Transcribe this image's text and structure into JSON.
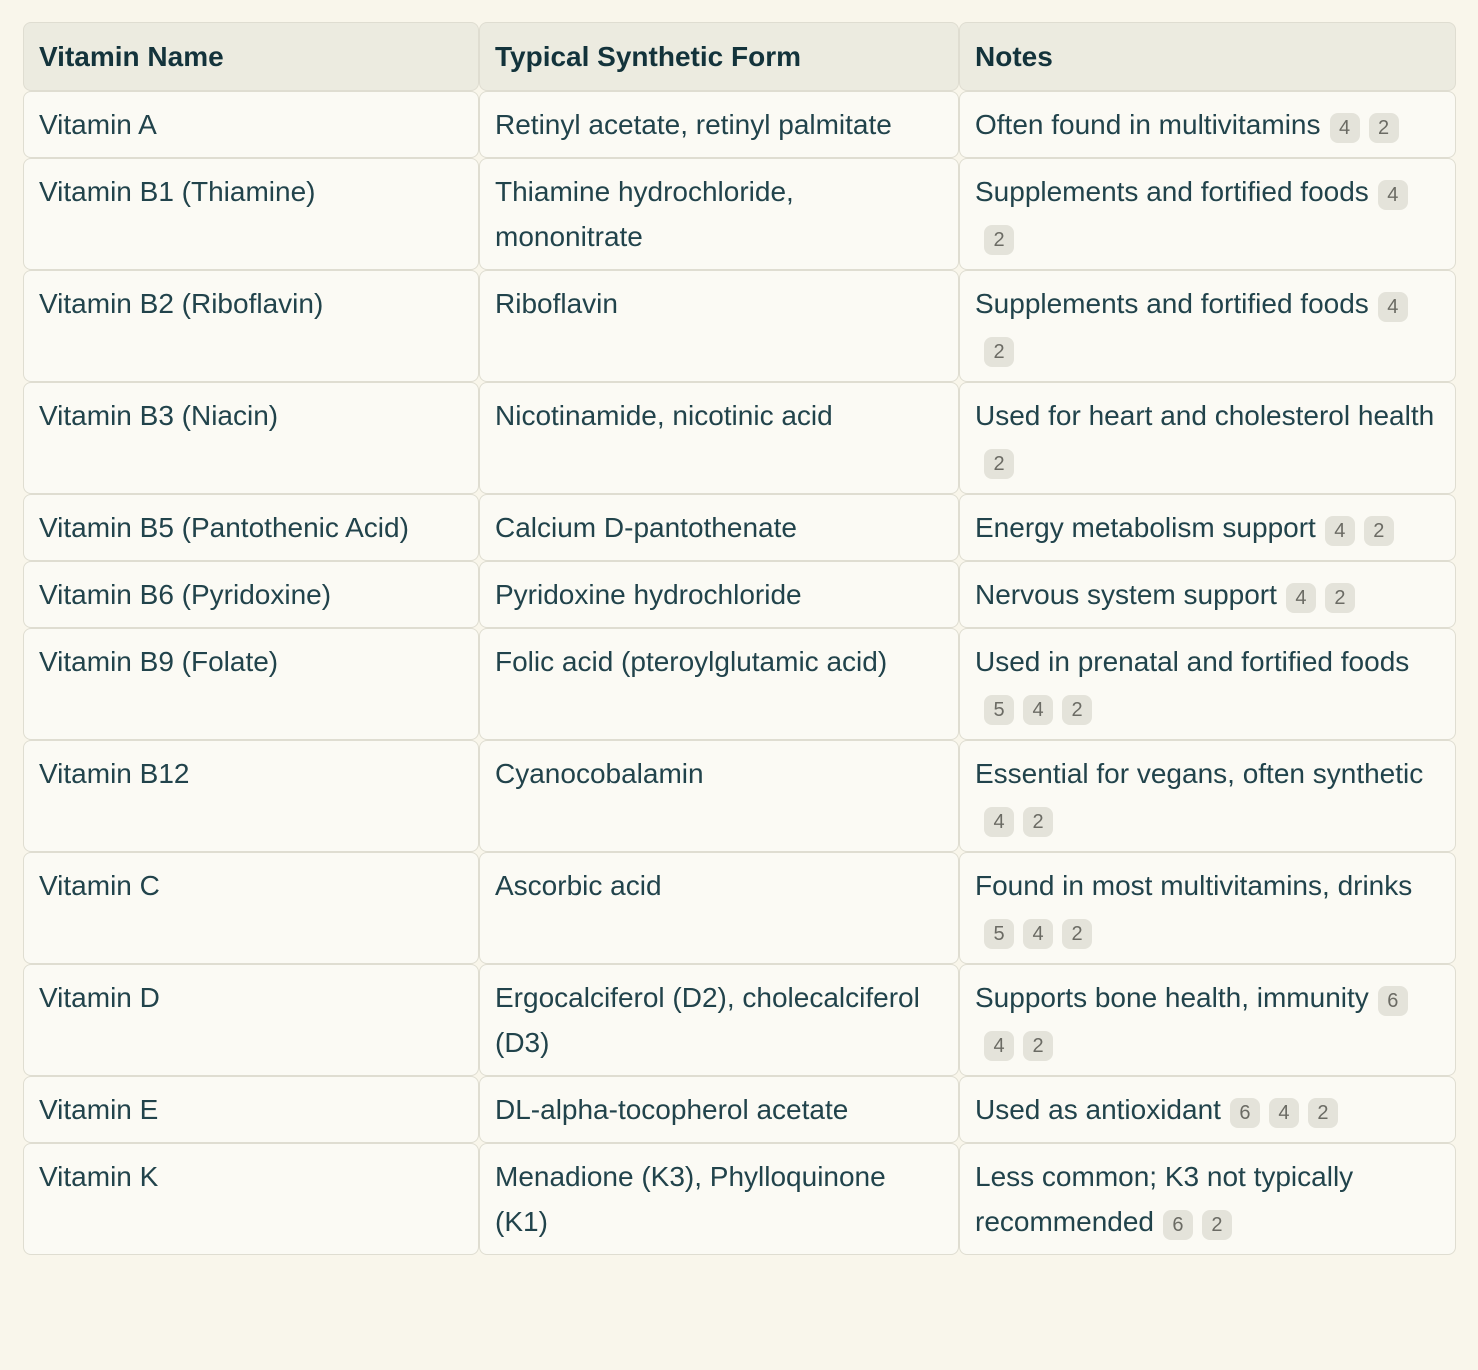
{
  "table": {
    "columns": [
      {
        "label": "Vitamin Name"
      },
      {
        "label": "Typical Synthetic Form"
      },
      {
        "label": "Notes"
      }
    ],
    "rows": [
      {
        "name": "Vitamin A",
        "form": "Retinyl acetate, retinyl palmitate",
        "note": "Often found in multivitamins",
        "citations": [
          "4",
          "2"
        ]
      },
      {
        "name": "Vitamin B1 (Thiamine)",
        "form": "Thiamine hydrochloride, mononitrate",
        "note": "Supplements and fortified foods",
        "citations": [
          "4",
          "2"
        ]
      },
      {
        "name": "Vitamin B2 (Riboflavin)",
        "form": "Riboflavin",
        "note": "Supplements and fortified foods",
        "citations": [
          "4",
          "2"
        ]
      },
      {
        "name": "Vitamin B3 (Niacin)",
        "form": "Nicotinamide, nicotinic acid",
        "note": "Used for heart and cholesterol health",
        "citations": [
          "2"
        ]
      },
      {
        "name": "Vitamin B5 (Pantothenic Acid)",
        "form": "Calcium D-pantothenate",
        "note": "Energy metabolism support",
        "citations": [
          "4",
          "2"
        ]
      },
      {
        "name": "Vitamin B6 (Pyridoxine)",
        "form": "Pyridoxine hydrochloride",
        "note": "Nervous system support",
        "citations": [
          "4",
          "2"
        ]
      },
      {
        "name": "Vitamin B9 (Folate)",
        "form": "Folic acid (pteroylglutamic acid)",
        "note": "Used in prenatal and fortified foods",
        "citations": [
          "5",
          "4",
          "2"
        ]
      },
      {
        "name": "Vitamin B12",
        "form": "Cyanocobalamin",
        "note": "Essential for vegans, often synthetic",
        "citations": [
          "4",
          "2"
        ]
      },
      {
        "name": "Vitamin C",
        "form": "Ascorbic acid",
        "note": "Found in most multivitamins, drinks",
        "citations": [
          "5",
          "4",
          "2"
        ]
      },
      {
        "name": "Vitamin D",
        "form": "Ergocalciferol (D2), cholecalciferol (D3)",
        "note": "Supports bone health, immunity",
        "citations": [
          "6",
          "4",
          "2"
        ]
      },
      {
        "name": "Vitamin E",
        "form": "DL-alpha-tocopherol acetate",
        "note": "Used as antioxidant",
        "citations": [
          "6",
          "4",
          "2"
        ]
      },
      {
        "name": "Vitamin K",
        "form": "Menadione (K3), Phylloquinone (K1)",
        "note": "Less common; K3 not typically recommended",
        "citations": [
          "6",
          "2"
        ]
      }
    ]
  },
  "colors": {
    "page_bg": "#f9f6eb",
    "cell_bg": "#fbfaf4",
    "header_bg": "#ecebe0",
    "border": "#dfddd1",
    "header_text": "#13333b",
    "body_text": "#21434b",
    "badge_bg": "#e4e3da",
    "badge_text": "#6b6b64"
  }
}
